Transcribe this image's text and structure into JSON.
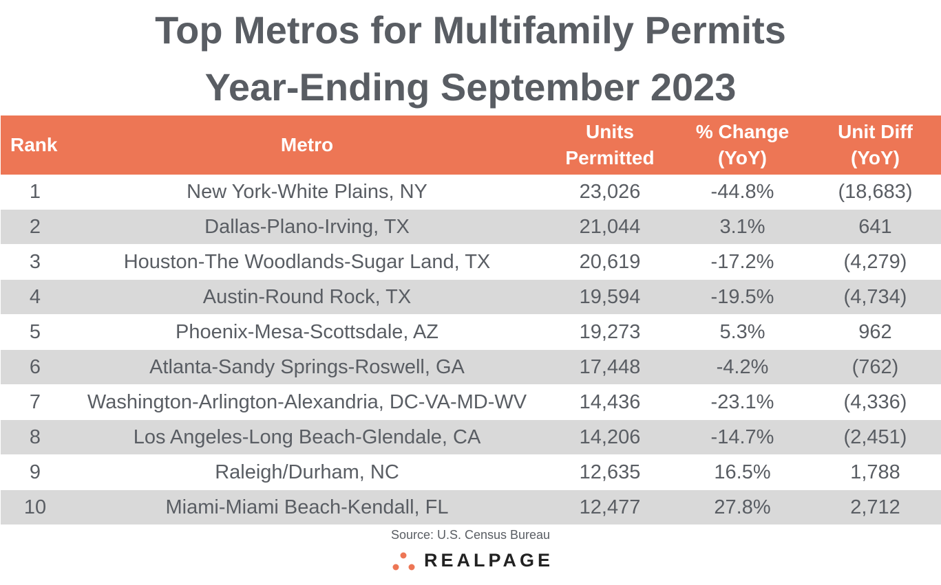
{
  "chart_data": {
    "type": "table",
    "title": [
      "Top Metros for Multifamily Permits",
      "Year-Ending September 2023"
    ],
    "columns": [
      "Rank",
      "Metro",
      "Units Permitted",
      "% Change (YoY)",
      "Unit Diff (YoY)"
    ],
    "header_lines": [
      [
        "Rank"
      ],
      [
        "Metro"
      ],
      [
        "Units",
        "Permitted"
      ],
      [
        "% Change",
        "(YoY)"
      ],
      [
        "Unit Diff",
        "(YoY)"
      ]
    ],
    "rows": [
      [
        "1",
        "New York-White Plains, NY",
        "23,026",
        "-44.8%",
        "(18,683)"
      ],
      [
        "2",
        "Dallas-Plano-Irving, TX",
        "21,044",
        "3.1%",
        "641"
      ],
      [
        "3",
        "Houston-The Woodlands-Sugar Land, TX",
        "20,619",
        "-17.2%",
        "(4,279)"
      ],
      [
        "4",
        "Austin-Round Rock, TX",
        "19,594",
        "-19.5%",
        "(4,734)"
      ],
      [
        "5",
        "Phoenix-Mesa-Scottsdale, AZ",
        "19,273",
        "5.3%",
        "962"
      ],
      [
        "6",
        "Atlanta-Sandy Springs-Roswell, GA",
        "17,448",
        "-4.2%",
        "(762)"
      ],
      [
        "7",
        "Washington-Arlington-Alexandria, DC-VA-MD-WV",
        "14,436",
        "-23.1%",
        "(4,336)"
      ],
      [
        "8",
        "Los Angeles-Long Beach-Glendale, CA",
        "14,206",
        "-14.7%",
        "(2,451)"
      ],
      [
        "9",
        "Raleigh/Durham, NC",
        "12,635",
        "16.5%",
        "1,788"
      ],
      [
        "10",
        "Miami-Miami Beach-Kendall, FL",
        "12,477",
        "27.8%",
        "2,712"
      ]
    ],
    "source": "Source: U.S. Census Bureau"
  },
  "logo": {
    "text": "REALPAGE"
  },
  "colors": {
    "header": "#ED7655",
    "stripe": "#D9D9D9",
    "text": "#595d63",
    "logo_dots": "#ED7655"
  }
}
